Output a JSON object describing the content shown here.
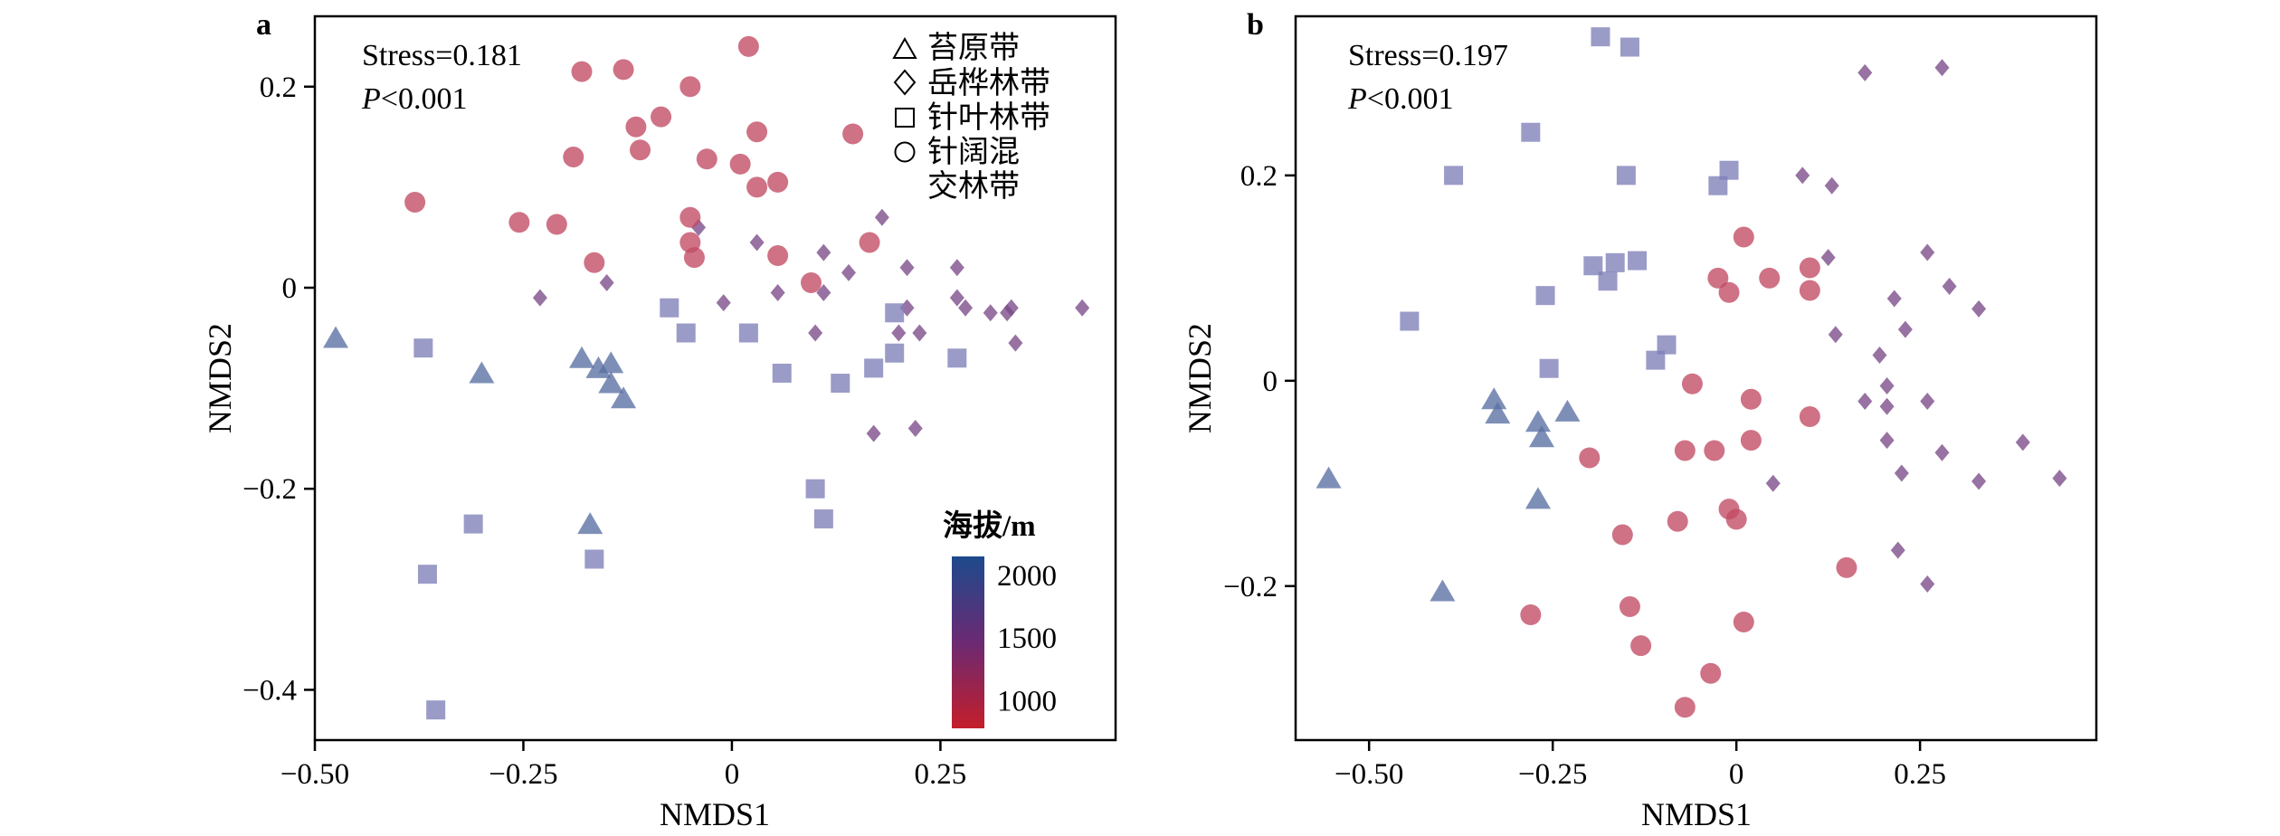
{
  "colors": {
    "blue": "#1d4a8c",
    "red": "#c41e2a",
    "mid": "#5c2d7a",
    "frame": "#000000"
  },
  "legend": {
    "items": [
      {
        "shape": "triangle",
        "label": "苔原带"
      },
      {
        "shape": "diamond",
        "label": "岳桦林带"
      },
      {
        "shape": "square",
        "label": "针叶林带"
      },
      {
        "shape": "circle",
        "label": "针阔混",
        "label2": "交林带"
      }
    ]
  },
  "colorbar": {
    "title": "海拔/m",
    "range": [
      780,
      2150
    ],
    "ticks": [
      1000,
      1500,
      2000
    ],
    "tick_labels": [
      "1000",
      "1500",
      "2000"
    ]
  },
  "chart_data": [
    {
      "type": "scatter",
      "panel": "a",
      "xlabel": "NMDS1",
      "ylabel": "NMDS2",
      "xlim": [
        -0.5,
        0.46
      ],
      "ylim": [
        -0.45,
        0.27
      ],
      "xticks": [
        -0.5,
        -0.25,
        0,
        0.25
      ],
      "xtick_labels": [
        "−0.50",
        "−0.25",
        "0",
        "0.25"
      ],
      "yticks": [
        -0.4,
        -0.2,
        0,
        0.2
      ],
      "ytick_labels": [
        "−0.4",
        "−0.2",
        "0",
        "0.2"
      ],
      "stress_label": "Stress=0.181",
      "p_label": "<0.001",
      "series": [
        {
          "name": "苔原带",
          "shape": "triangle",
          "color": "#5a6fa3",
          "points": [
            [
              -0.475,
              -0.05
            ],
            [
              -0.3,
              -0.085
            ],
            [
              -0.18,
              -0.07
            ],
            [
              -0.16,
              -0.08
            ],
            [
              -0.145,
              -0.075
            ],
            [
              -0.145,
              -0.095
            ],
            [
              -0.13,
              -0.11
            ],
            [
              -0.17,
              -0.235
            ]
          ]
        },
        {
          "name": "岳桦林带",
          "shape": "diamond",
          "color": "#7a4a88",
          "points": [
            [
              -0.23,
              -0.01
            ],
            [
              -0.15,
              0.005
            ],
            [
              -0.04,
              0.06
            ],
            [
              -0.01,
              -0.015
            ],
            [
              0.03,
              0.045
            ],
            [
              0.055,
              -0.005
            ],
            [
              0.11,
              0.035
            ],
            [
              0.11,
              -0.005
            ],
            [
              0.14,
              0.015
            ],
            [
              0.18,
              0.07
            ],
            [
              0.21,
              0.02
            ],
            [
              0.21,
              -0.02
            ],
            [
              0.2,
              -0.045
            ],
            [
              0.225,
              -0.045
            ],
            [
              0.27,
              0.02
            ],
            [
              0.27,
              -0.01
            ],
            [
              0.28,
              -0.02
            ],
            [
              0.31,
              -0.025
            ],
            [
              0.33,
              -0.025
            ],
            [
              0.335,
              -0.02
            ],
            [
              0.34,
              -0.055
            ],
            [
              0.42,
              -0.02
            ],
            [
              0.17,
              -0.145
            ],
            [
              0.22,
              -0.14
            ],
            [
              0.1,
              -0.045
            ]
          ]
        },
        {
          "name": "针叶林带",
          "shape": "square",
          "color": "#7f7fb8",
          "points": [
            [
              -0.37,
              -0.06
            ],
            [
              -0.075,
              -0.02
            ],
            [
              -0.055,
              -0.045
            ],
            [
              0.02,
              -0.045
            ],
            [
              0.06,
              -0.085
            ],
            [
              0.13,
              -0.095
            ],
            [
              0.17,
              -0.08
            ],
            [
              0.195,
              -0.025
            ],
            [
              0.195,
              -0.065
            ],
            [
              0.27,
              -0.07
            ],
            [
              -0.31,
              -0.235
            ],
            [
              -0.365,
              -0.285
            ],
            [
              -0.165,
              -0.27
            ],
            [
              -0.355,
              -0.42
            ],
            [
              0.1,
              -0.2
            ],
            [
              0.11,
              -0.23
            ]
          ]
        },
        {
          "name": "针阔混交林带",
          "shape": "circle",
          "color": "#c24a63",
          "points": [
            [
              -0.38,
              0.085
            ],
            [
              -0.255,
              0.065
            ],
            [
              -0.21,
              0.063
            ],
            [
              -0.19,
              0.13
            ],
            [
              -0.18,
              0.215
            ],
            [
              -0.13,
              0.217
            ],
            [
              -0.115,
              0.16
            ],
            [
              -0.11,
              0.137
            ],
            [
              -0.085,
              0.17
            ],
            [
              -0.05,
              0.2
            ],
            [
              -0.03,
              0.128
            ],
            [
              -0.05,
              0.07
            ],
            [
              -0.05,
              0.045
            ],
            [
              -0.045,
              0.03
            ],
            [
              0.01,
              0.123
            ],
            [
              0.03,
              0.155
            ],
            [
              0.03,
              0.1
            ],
            [
              0.055,
              0.105
            ],
            [
              0.02,
              0.24
            ],
            [
              0.145,
              0.153
            ],
            [
              0.055,
              0.032
            ],
            [
              0.095,
              0.005
            ],
            [
              0.165,
              0.045
            ],
            [
              -0.165,
              0.025
            ]
          ]
        }
      ]
    },
    {
      "type": "scatter",
      "panel": "b",
      "xlabel": "NMDS1",
      "ylabel": "NMDS2",
      "xlim": [
        -0.6,
        0.49
      ],
      "ylim": [
        -0.35,
        0.355
      ],
      "xticks": [
        -0.5,
        -0.25,
        0,
        0.25
      ],
      "xtick_labels": [
        "−0.50",
        "−0.25",
        "0",
        "0.25"
      ],
      "yticks": [
        -0.2,
        0,
        0.2
      ],
      "ytick_labels": [
        "−0.2",
        "0",
        "0.2"
      ],
      "stress_label": "Stress=0.197",
      "p_label": "<0.001",
      "series": [
        {
          "name": "苔原带",
          "shape": "triangle",
          "color": "#5a6fa3",
          "points": [
            [
              -0.555,
              -0.095
            ],
            [
              -0.33,
              -0.018
            ],
            [
              -0.325,
              -0.032
            ],
            [
              -0.27,
              -0.04
            ],
            [
              -0.265,
              -0.055
            ],
            [
              -0.23,
              -0.03
            ],
            [
              -0.27,
              -0.115
            ],
            [
              -0.4,
              -0.205
            ]
          ]
        },
        {
          "name": "岳桦林带",
          "shape": "diamond",
          "color": "#7a4a88",
          "points": [
            [
              0.175,
              0.3
            ],
            [
              0.28,
              0.305
            ],
            [
              0.09,
              0.2
            ],
            [
              0.13,
              0.19
            ],
            [
              0.125,
              0.12
            ],
            [
              0.215,
              0.08
            ],
            [
              0.26,
              0.125
            ],
            [
              0.29,
              0.092
            ],
            [
              0.33,
              0.07
            ],
            [
              0.135,
              0.045
            ],
            [
              0.195,
              0.025
            ],
            [
              0.23,
              0.05
            ],
            [
              0.205,
              -0.005
            ],
            [
              0.175,
              -0.02
            ],
            [
              0.205,
              -0.025
            ],
            [
              0.26,
              -0.02
            ],
            [
              0.205,
              -0.058
            ],
            [
              0.225,
              -0.09
            ],
            [
              0.28,
              -0.07
            ],
            [
              0.33,
              -0.098
            ],
            [
              0.39,
              -0.06
            ],
            [
              0.44,
              -0.095
            ],
            [
              0.05,
              -0.1
            ],
            [
              0.22,
              -0.165
            ],
            [
              0.26,
              -0.198
            ]
          ]
        },
        {
          "name": "针叶林带",
          "shape": "square",
          "color": "#7f7fb8",
          "points": [
            [
              -0.185,
              0.335
            ],
            [
              -0.145,
              0.325
            ],
            [
              -0.28,
              0.242
            ],
            [
              -0.385,
              0.2
            ],
            [
              -0.15,
              0.2
            ],
            [
              -0.025,
              0.19
            ],
            [
              -0.01,
              0.205
            ],
            [
              -0.195,
              0.112
            ],
            [
              -0.165,
              0.115
            ],
            [
              -0.135,
              0.117
            ],
            [
              -0.175,
              0.097
            ],
            [
              -0.26,
              0.083
            ],
            [
              -0.445,
              0.058
            ],
            [
              -0.095,
              0.035
            ],
            [
              -0.255,
              0.012
            ],
            [
              -0.11,
              0.02
            ]
          ]
        },
        {
          "name": "针阔混交林带",
          "shape": "circle",
          "color": "#c24a63",
          "points": [
            [
              0.01,
              0.14
            ],
            [
              0.1,
              0.11
            ],
            [
              -0.025,
              0.1
            ],
            [
              0.045,
              0.1
            ],
            [
              0.1,
              0.088
            ],
            [
              -0.01,
              0.086
            ],
            [
              -0.06,
              -0.003
            ],
            [
              0.02,
              -0.018
            ],
            [
              0.1,
              -0.035
            ],
            [
              -0.2,
              -0.075
            ],
            [
              -0.07,
              -0.068
            ],
            [
              -0.03,
              -0.068
            ],
            [
              0.02,
              -0.058
            ],
            [
              -0.01,
              -0.125
            ],
            [
              0.0,
              -0.135
            ],
            [
              -0.08,
              -0.137
            ],
            [
              -0.155,
              -0.15
            ],
            [
              0.15,
              -0.182
            ],
            [
              -0.28,
              -0.228
            ],
            [
              -0.145,
              -0.22
            ],
            [
              -0.13,
              -0.258
            ],
            [
              0.01,
              -0.235
            ],
            [
              -0.035,
              -0.285
            ],
            [
              -0.07,
              -0.318
            ]
          ]
        }
      ]
    }
  ]
}
